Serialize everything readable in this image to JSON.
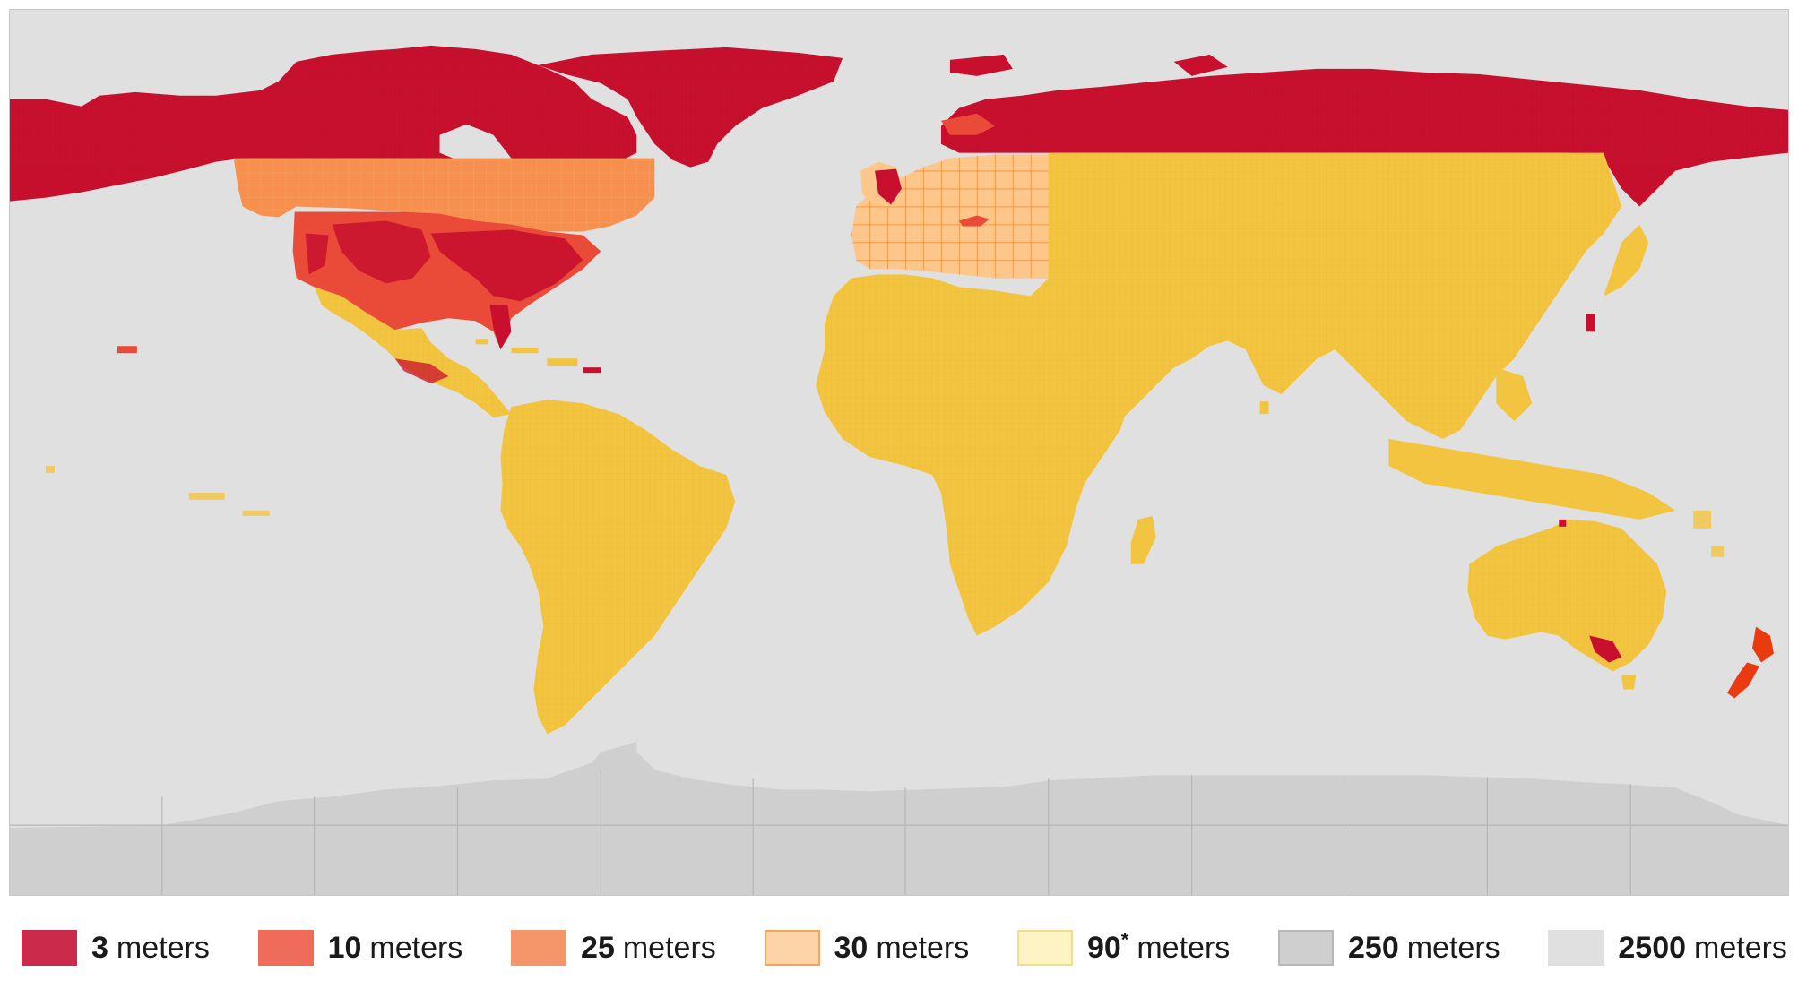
{
  "map": {
    "background_color": "#e0e0e0",
    "regions": [
      {
        "id": "north-america-arctic",
        "resolution": "3 meters"
      },
      {
        "id": "greenland",
        "resolution": "3 meters"
      },
      {
        "id": "northern-eurasia",
        "resolution": "3 meters"
      },
      {
        "id": "canada-south",
        "resolution": "25 meters"
      },
      {
        "id": "usa",
        "resolution": "10 meters"
      },
      {
        "id": "mexico",
        "resolution": "90* meters"
      },
      {
        "id": "europe",
        "resolution": "30 meters"
      },
      {
        "id": "asia",
        "resolution": "90* meters"
      },
      {
        "id": "africa",
        "resolution": "90* meters"
      },
      {
        "id": "south-america",
        "resolution": "90* meters"
      },
      {
        "id": "australia",
        "resolution": "90* meters"
      },
      {
        "id": "new-zealand",
        "resolution": "10 meters"
      },
      {
        "id": "antarctica",
        "resolution": "250 meters"
      },
      {
        "id": "oceans",
        "resolution": "2500 meters"
      }
    ]
  },
  "legend": {
    "unit": "meters",
    "items": [
      {
        "value": "3",
        "sup": "",
        "color": "#cc2a4a",
        "border": "#cc2a4a"
      },
      {
        "value": "10",
        "sup": "",
        "color": "#ef6b5a",
        "border": "#ef6b5a"
      },
      {
        "value": "25",
        "sup": "",
        "color": "#f5956a",
        "border": "#f5956a"
      },
      {
        "value": "30",
        "sup": "",
        "color": "#fdd3a8",
        "border": "#f5a45a"
      },
      {
        "value": "90",
        "sup": "*",
        "color": "#fdf3c4",
        "border": "#f5dc8a"
      },
      {
        "value": "250",
        "sup": "",
        "color": "#cfcfcf",
        "border": "#b8b8b8"
      },
      {
        "value": "2500",
        "sup": "",
        "color": "#e0e0e0",
        "border": "#e0e0e0"
      }
    ]
  }
}
